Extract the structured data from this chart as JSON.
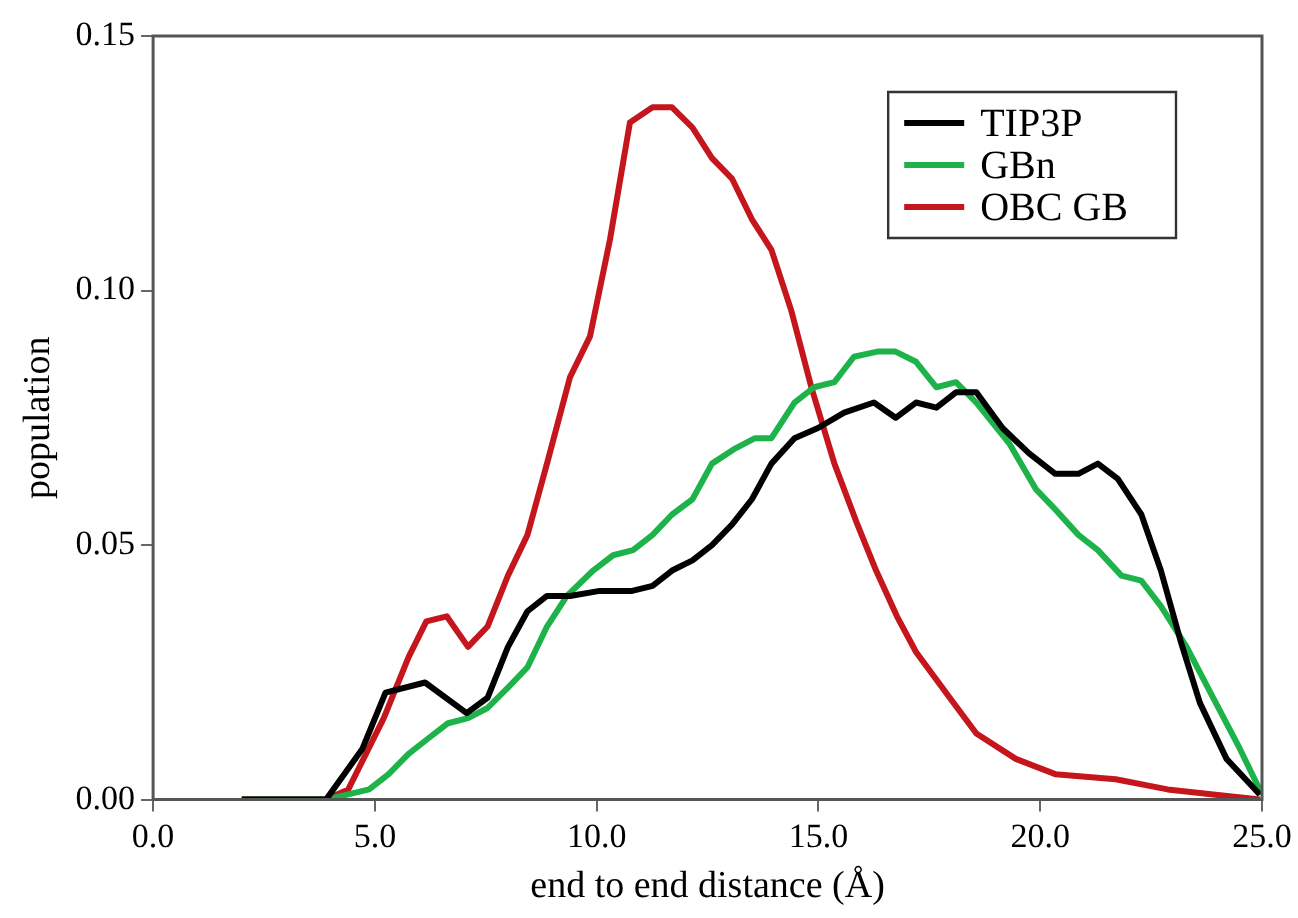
{
  "chart_data": {
    "type": "line",
    "xlabel": "end to end distance (Å)",
    "ylabel": "population",
    "xlim": [
      0,
      25
    ],
    "ylim": [
      0,
      0.15
    ],
    "xticks": [
      {
        "value": 0,
        "label": "0.0"
      },
      {
        "value": 5,
        "label": "5.0"
      },
      {
        "value": 10,
        "label": "10.0"
      },
      {
        "value": 15,
        "label": "15.0"
      },
      {
        "value": 20,
        "label": "20.0"
      },
      {
        "value": 25,
        "label": "25.0"
      }
    ],
    "yticks": [
      {
        "value": 0,
        "label": "0.00"
      },
      {
        "value": 0.05,
        "label": "0.05"
      },
      {
        "value": 0.1,
        "label": "0.10"
      },
      {
        "value": 0.15,
        "label": "0.15"
      }
    ],
    "grid": false,
    "legend": "top right",
    "marker": "none",
    "line_style": "solid",
    "series": [
      {
        "name": "TIP3P",
        "color": "#000000",
        "x": [
          2.0,
          3.9,
          4.72,
          5.24,
          6.13,
          7.07,
          7.54,
          8.0,
          8.44,
          8.88,
          9.4,
          10.07,
          10.8,
          11.26,
          11.7,
          12.16,
          12.6,
          13.05,
          13.5,
          13.94,
          14.46,
          14.99,
          15.58,
          16.25,
          16.74,
          17.2,
          17.66,
          18.1,
          18.56,
          19.15,
          19.75,
          20.34,
          20.86,
          21.3,
          21.75,
          22.28,
          22.72,
          23.17,
          23.6,
          24.2,
          24.95
        ],
        "values": [
          0,
          0,
          0.01,
          0.021,
          0.023,
          0.017,
          0.02,
          0.03,
          0.037,
          0.04,
          0.04,
          0.041,
          0.041,
          0.042,
          0.045,
          0.047,
          0.05,
          0.054,
          0.059,
          0.066,
          0.071,
          0.073,
          0.076,
          0.078,
          0.075,
          0.078,
          0.077,
          0.08,
          0.08,
          0.073,
          0.068,
          0.064,
          0.064,
          0.066,
          0.063,
          0.056,
          0.045,
          0.031,
          0.019,
          0.008,
          0.001
        ]
      },
      {
        "name": "GBn",
        "color": "#1db34a",
        "x": [
          2.0,
          3.9,
          4.87,
          5.31,
          5.76,
          6.2,
          6.65,
          7.1,
          7.54,
          8.0,
          8.44,
          8.88,
          9.33,
          9.92,
          10.37,
          10.82,
          11.26,
          11.7,
          12.16,
          12.6,
          13.13,
          13.57,
          13.94,
          14.46,
          14.9,
          15.36,
          15.8,
          16.33,
          16.74,
          17.2,
          17.66,
          18.1,
          18.56,
          19.3,
          19.9,
          20.34,
          20.86,
          21.3,
          21.83,
          22.28,
          22.72,
          23.3,
          23.9,
          24.5,
          25.0
        ],
        "values": [
          0,
          0,
          0.002,
          0.005,
          0.009,
          0.012,
          0.015,
          0.016,
          0.018,
          0.022,
          0.026,
          0.034,
          0.04,
          0.045,
          0.048,
          0.049,
          0.052,
          0.056,
          0.059,
          0.066,
          0.069,
          0.071,
          0.071,
          0.078,
          0.081,
          0.082,
          0.087,
          0.088,
          0.088,
          0.086,
          0.081,
          0.082,
          0.078,
          0.07,
          0.061,
          0.057,
          0.052,
          0.049,
          0.044,
          0.043,
          0.038,
          0.03,
          0.02,
          0.01,
          0.001
        ]
      },
      {
        "name": "OBC GB",
        "color": "#c4161c",
        "x": [
          2.0,
          3.9,
          4.4,
          5.2,
          5.76,
          6.16,
          6.62,
          7.1,
          7.54,
          8.0,
          8.44,
          8.88,
          9.4,
          9.85,
          10.3,
          10.75,
          11.26,
          11.7,
          12.16,
          12.6,
          13.05,
          13.5,
          13.94,
          14.39,
          14.84,
          15.36,
          15.88,
          16.3,
          16.77,
          17.2,
          17.96,
          18.56,
          19.45,
          20.34,
          21.7,
          22.87,
          23.9,
          24.95
        ],
        "values": [
          0,
          0,
          0.002,
          0.016,
          0.028,
          0.035,
          0.036,
          0.03,
          0.034,
          0.044,
          0.052,
          0.066,
          0.083,
          0.091,
          0.11,
          0.133,
          0.136,
          0.136,
          0.132,
          0.126,
          0.122,
          0.114,
          0.108,
          0.096,
          0.081,
          0.066,
          0.054,
          0.045,
          0.036,
          0.029,
          0.02,
          0.013,
          0.008,
          0.005,
          0.004,
          0.002,
          0.001,
          0
        ]
      }
    ]
  }
}
